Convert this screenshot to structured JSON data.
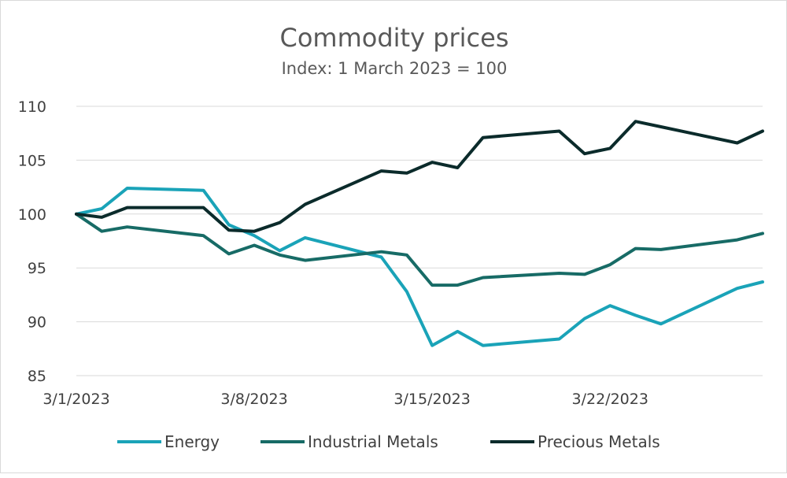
{
  "chart_data": {
    "type": "line",
    "title": "Commodity prices",
    "subtitle": "Index: 1 March 2023 = 100",
    "xlabel": "",
    "ylabel": "",
    "ylim": [
      85,
      110
    ],
    "yticks": [
      "85",
      "90",
      "95",
      "100",
      "105",
      "110"
    ],
    "xlim": [
      0,
      27
    ],
    "xticks": [
      {
        "label": "3/1/2023",
        "day": 0
      },
      {
        "label": "3/8/2023",
        "day": 7
      },
      {
        "label": "3/15/2023",
        "day": 14
      },
      {
        "label": "3/22/2023",
        "day": 21
      }
    ],
    "legend_position": "bottom",
    "grid": true,
    "x": [
      0,
      1,
      2,
      5,
      6,
      7,
      8,
      9,
      12,
      13,
      14,
      15,
      16,
      19,
      20,
      21,
      22,
      23,
      26,
      27
    ],
    "series": [
      {
        "name": "Energy",
        "color": "#1aa3b8",
        "values": [
          100,
          100.5,
          102.4,
          102.2,
          99.0,
          98.0,
          96.6,
          97.8,
          96.0,
          92.8,
          87.8,
          89.1,
          87.8,
          88.4,
          90.3,
          91.5,
          90.6,
          89.8,
          93.1,
          93.7
        ]
      },
      {
        "name": "Industrial Metals",
        "color": "#176b66",
        "values": [
          100,
          98.4,
          98.8,
          98.0,
          96.3,
          97.1,
          96.2,
          95.7,
          96.5,
          96.2,
          93.4,
          93.4,
          94.1,
          94.5,
          94.4,
          95.3,
          96.8,
          96.7,
          97.6,
          98.2
        ]
      },
      {
        "name": "Precious Metals",
        "color": "#0b2b2b",
        "values": [
          100,
          99.7,
          100.6,
          100.6,
          98.5,
          98.4,
          99.2,
          100.9,
          104.0,
          103.8,
          104.8,
          104.3,
          107.1,
          107.7,
          105.6,
          106.1,
          108.6,
          108.1,
          106.6,
          107.7
        ]
      }
    ]
  }
}
